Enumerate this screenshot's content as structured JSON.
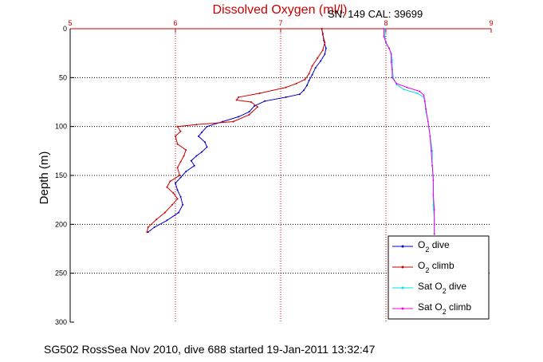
{
  "chart_data": {
    "type": "line",
    "title": "Dissolved Oxygen (ml/l)",
    "info": "SN: 149  CAL: 39699",
    "caption": "SG502 RossSea Nov 2010, dive 688 started 19-Jan-2011 13:32:47",
    "ylabel": "Depth (m)",
    "xlim": [
      5,
      9
    ],
    "ylim": [
      0,
      300
    ],
    "y_inverted": true,
    "xticks": [
      "5",
      "6",
      "7",
      "8",
      "9"
    ],
    "yticks": [
      "0",
      "50",
      "100",
      "150",
      "200",
      "250",
      "300"
    ],
    "grid": true,
    "legend_position": "lower-right",
    "series": [
      {
        "name": "O2 dive",
        "legend_main": "O",
        "legend_sub": "2",
        "legend_tail": " dive",
        "color": "#0000cc",
        "points": [
          [
            7.39,
            0
          ],
          [
            7.4,
            5
          ],
          [
            7.41,
            12
          ],
          [
            7.43,
            20
          ],
          [
            7.42,
            26
          ],
          [
            7.38,
            33
          ],
          [
            7.33,
            40
          ],
          [
            7.3,
            47
          ],
          [
            7.27,
            53
          ],
          [
            7.25,
            58
          ],
          [
            7.22,
            63
          ],
          [
            7.18,
            67
          ],
          [
            7.05,
            70
          ],
          [
            6.85,
            74
          ],
          [
            6.75,
            79
          ],
          [
            6.7,
            85
          ],
          [
            6.6,
            90
          ],
          [
            6.45,
            95
          ],
          [
            6.3,
            100
          ],
          [
            6.25,
            106
          ],
          [
            6.22,
            110
          ],
          [
            6.28,
            116
          ],
          [
            6.3,
            121
          ],
          [
            6.25,
            126
          ],
          [
            6.2,
            130
          ],
          [
            6.15,
            135
          ],
          [
            6.18,
            140
          ],
          [
            6.1,
            146
          ],
          [
            6.05,
            152
          ],
          [
            6.0,
            158
          ],
          [
            6.02,
            165
          ],
          [
            6.05,
            172
          ],
          [
            6.07,
            180
          ],
          [
            6.03,
            188
          ],
          [
            5.92,
            196
          ],
          [
            5.8,
            203
          ],
          [
            5.74,
            208
          ]
        ]
      },
      {
        "name": "O2 climb",
        "legend_main": "O",
        "legend_sub": "2",
        "legend_tail": " climb",
        "color": "#cc0000",
        "points": [
          [
            7.39,
            0
          ],
          [
            7.4,
            6
          ],
          [
            7.42,
            14
          ],
          [
            7.4,
            22
          ],
          [
            7.35,
            30
          ],
          [
            7.3,
            38
          ],
          [
            7.27,
            46
          ],
          [
            7.23,
            52
          ],
          [
            7.15,
            56
          ],
          [
            7.05,
            60
          ],
          [
            6.8,
            66
          ],
          [
            6.6,
            70
          ],
          [
            6.58,
            73
          ],
          [
            6.72,
            75
          ],
          [
            6.78,
            80
          ],
          [
            6.7,
            88
          ],
          [
            6.55,
            95
          ],
          [
            6.2,
            98
          ],
          [
            6.02,
            100
          ],
          [
            6.05,
            105
          ],
          [
            6.0,
            110
          ],
          [
            6.02,
            118
          ],
          [
            6.1,
            124
          ],
          [
            6.08,
            130
          ],
          [
            6.05,
            136
          ],
          [
            6.02,
            142
          ],
          [
            6.04,
            150
          ],
          [
            5.95,
            156
          ],
          [
            5.92,
            162
          ],
          [
            5.98,
            168
          ],
          [
            6.02,
            174
          ],
          [
            5.97,
            180
          ],
          [
            5.9,
            188
          ],
          [
            5.82,
            195
          ],
          [
            5.74,
            203
          ],
          [
            5.73,
            208
          ]
        ]
      },
      {
        "name": "Sat O2 dive",
        "legend_main": "Sat O",
        "legend_sub": "2",
        "legend_tail": " dive",
        "color": "#00e5e5",
        "points": [
          [
            7.99,
            0
          ],
          [
            7.99,
            8
          ],
          [
            8.0,
            15
          ],
          [
            8.03,
            20
          ],
          [
            8.05,
            25
          ],
          [
            8.06,
            32
          ],
          [
            8.06,
            40
          ],
          [
            8.07,
            50
          ],
          [
            8.1,
            57
          ],
          [
            8.17,
            62
          ],
          [
            8.3,
            66
          ],
          [
            8.36,
            70
          ],
          [
            8.37,
            75
          ],
          [
            8.38,
            85
          ],
          [
            8.4,
            95
          ],
          [
            8.42,
            110
          ],
          [
            8.44,
            125
          ],
          [
            8.44,
            140
          ],
          [
            8.45,
            150
          ],
          [
            8.45,
            165
          ],
          [
            8.45,
            180
          ],
          [
            8.46,
            195
          ],
          [
            8.46,
            210
          ]
        ]
      },
      {
        "name": "Sat O2 climb",
        "legend_main": "Sat O",
        "legend_sub": "2",
        "legend_tail": " climb",
        "color": "#ee00ee",
        "points": [
          [
            7.98,
            0
          ],
          [
            7.98,
            8
          ],
          [
            8.0,
            14
          ],
          [
            8.03,
            20
          ],
          [
            8.05,
            26
          ],
          [
            8.05,
            34
          ],
          [
            8.06,
            42
          ],
          [
            8.06,
            50
          ],
          [
            8.1,
            56
          ],
          [
            8.2,
            60
          ],
          [
            8.32,
            64
          ],
          [
            8.36,
            68
          ],
          [
            8.37,
            74
          ],
          [
            8.38,
            82
          ],
          [
            8.4,
            95
          ],
          [
            8.42,
            110
          ],
          [
            8.43,
            125
          ],
          [
            8.44,
            140
          ],
          [
            8.45,
            155
          ],
          [
            8.45,
            170
          ],
          [
            8.46,
            185
          ],
          [
            8.46,
            200
          ],
          [
            8.46,
            210
          ]
        ]
      }
    ]
  }
}
